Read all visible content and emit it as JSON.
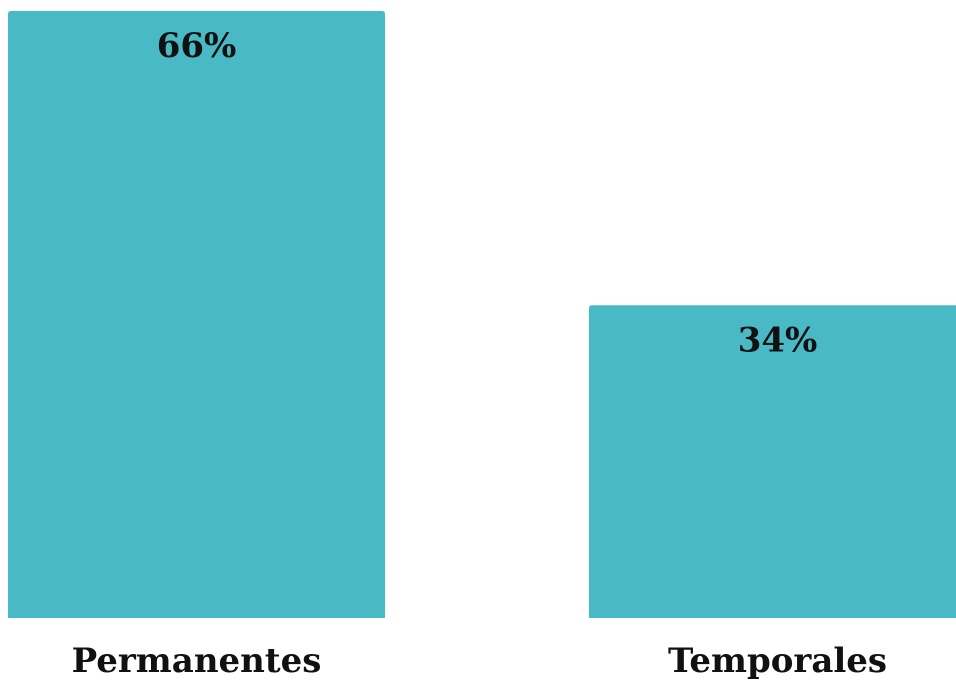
{
  "chart_data": {
    "type": "bar",
    "categories": [
      "Permanentes",
      "Temporales"
    ],
    "values": [
      66,
      34
    ],
    "value_labels": [
      "66%",
      "34%"
    ],
    "ylim": [
      0,
      66
    ],
    "grid": false,
    "legend": "none",
    "bar_color": "#49BAC5"
  }
}
